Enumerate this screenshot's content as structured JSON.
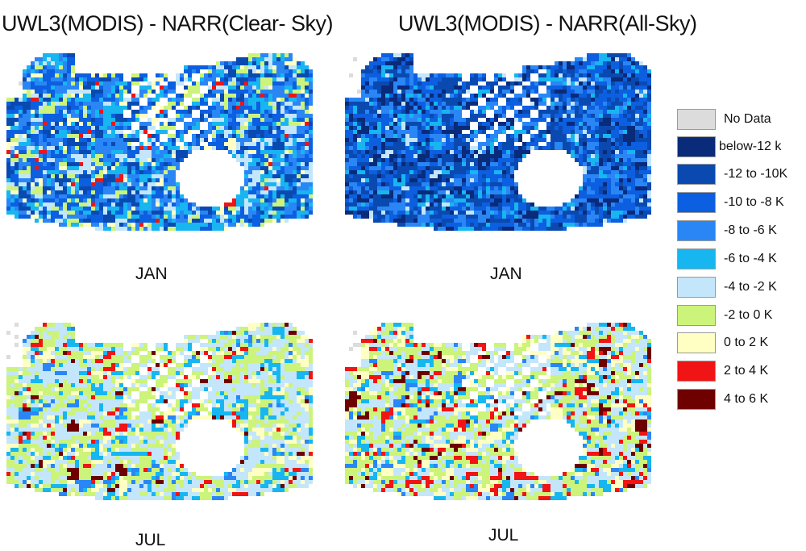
{
  "titles": {
    "left": "UWL3(MODIS) - NARR(Clear- Sky)",
    "right": "UWL3(MODIS) - NARR(All-Sky)"
  },
  "panels": [
    {
      "id": "jan-clear",
      "label": "JAN",
      "month": "JAN",
      "sky": "clear"
    },
    {
      "id": "jan-all",
      "label": "JAN",
      "month": "JAN",
      "sky": "all"
    },
    {
      "id": "jul-clear",
      "label": "JUL",
      "month": "JUL",
      "sky": "clear"
    },
    {
      "id": "jul-all",
      "label": "JUL",
      "month": "JUL",
      "sky": "all"
    }
  ],
  "legend": [
    {
      "label": "No Data",
      "color": "#dcdcdc"
    },
    {
      "label": "below-12 k",
      "color": "#0a2a7a"
    },
    {
      "label": "-12 to -10K",
      "color": "#0a4ab0"
    },
    {
      "label": "-10 to -8 K",
      "color": "#0c5fe0"
    },
    {
      "label": "-8 to -6 K",
      "color": "#2a86f5"
    },
    {
      "label": "-6 to -4 K",
      "color": "#17b6f0"
    },
    {
      "label": "-4 to -2 K",
      "color": "#c4e6fb"
    },
    {
      "label": "-2 to 0 K",
      "color": "#ccf37a"
    },
    {
      "label": "0 to 2 K",
      "color": "#ffffc4"
    },
    {
      "label": "2 to 4 K",
      "color": "#f01414"
    },
    {
      "label": "4 to 6 K",
      "color": "#6e0000"
    }
  ]
}
